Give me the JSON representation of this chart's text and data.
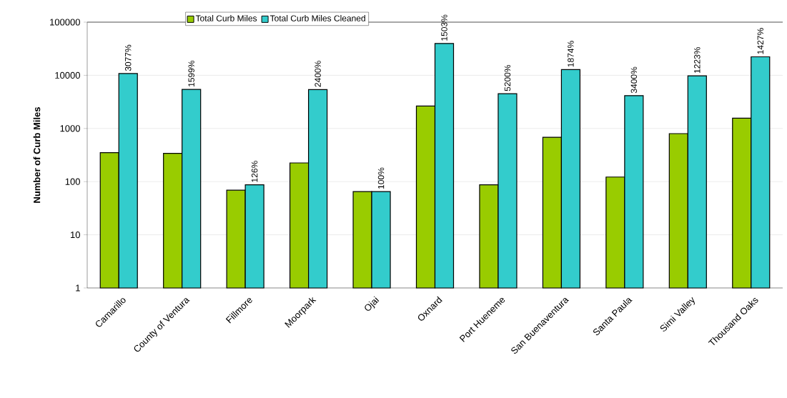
{
  "chart_data": {
    "type": "bar",
    "ylabel": "Number of Curb Miles",
    "log": true,
    "grid": "y",
    "legend": "top",
    "categories": [
      "Camarillo",
      "County of Ventura",
      "Fillmore",
      "Moorpark",
      "Ojai",
      "Oxnard",
      "Port Hueneme",
      "San Buenaventura",
      "Santa Paula",
      "Simi Valley",
      "Thousand Oaks"
    ],
    "ylim": [
      1,
      100000
    ],
    "yticks": [
      1,
      10,
      100,
      1000,
      10000,
      100000
    ],
    "series": [
      {
        "name": "Total Curb Miles",
        "color": "#99cc00",
        "values": [
          351,
          340,
          69,
          225,
          65,
          2650,
          87,
          683,
          122,
          800,
          1560
        ]
      },
      {
        "name": "Total Curb Miles Cleaned",
        "color": "#33cccc",
        "values": [
          10800,
          5440,
          87,
          5400,
          65,
          39800,
          4520,
          12800,
          4150,
          9780,
          22300
        ]
      }
    ],
    "annotations": [
      {
        "text": "3077%",
        "x": "Camarillo",
        "y": 10800
      },
      {
        "text": "1599%",
        "x": "County of Ventura",
        "y": 5440
      },
      {
        "text": "126%",
        "x": "Fillmore",
        "y": 87
      },
      {
        "text": "2400%",
        "x": "Moorpark",
        "y": 5400
      },
      {
        "text": "100%",
        "x": "Ojai",
        "y": 65
      },
      {
        "text": "1503%",
        "x": "Oxnard",
        "y": 39800
      },
      {
        "text": "5200%",
        "x": "Port Hueneme",
        "y": 4520
      },
      {
        "text": "1874%",
        "x": "San Buenaventura",
        "y": 12800
      },
      {
        "text": "3400%",
        "x": "Santa Paula",
        "y": 4150
      },
      {
        "text": "1223%",
        "x": "Simi Valley",
        "y": 9780
      },
      {
        "text": "1427%",
        "x": "Thousand Oaks",
        "y": 22300
      }
    ]
  }
}
